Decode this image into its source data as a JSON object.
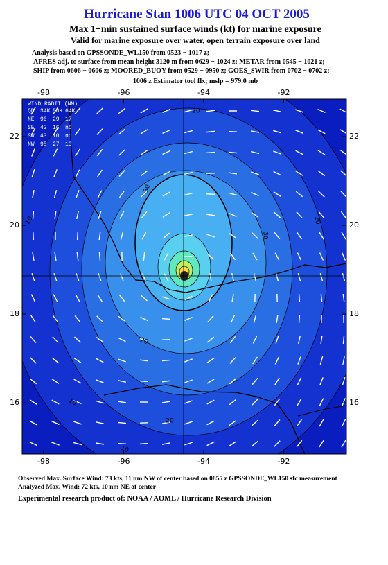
{
  "header": {
    "title": "Hurricane Stan 1006 UTC 04 OCT 2005",
    "subtitle": "Max 1−min sustained surface winds (kt) for marine exposure",
    "validity": "Valid for marine exposure over water, open terrain exposure over land",
    "analysis": [
      "Analysis based on  GPSSONDE_WL150 from 0523 − 1017 z;",
      "AFRES adj. to surface from mean height 3120 m from 0629 − 1024 z;  METAR from 0545 − 1021 z;",
      "SHIP from 0606 − 0606 z;  MOORED_BUOY from 0529 − 0950 z;  GOES_SWIR from 0702 − 0702 z;"
    ],
    "estimator": "1006 z Estimator tool flx; mslp = 979.0 mb"
  },
  "map": {
    "xticks": [
      -98,
      -96,
      -94,
      -92
    ],
    "yticks": [
      22,
      20,
      18,
      16
    ],
    "contour_labels": [
      20,
      30,
      10,
      20,
      30,
      20,
      20,
      10,
      10
    ],
    "wind_radii": {
      "title": "WIND RADII (NM)",
      "columns": [
        "QD",
        "34K",
        "50K",
        "64K"
      ],
      "rows": [
        [
          "NE",
          96,
          29,
          17
        ],
        [
          "SE",
          42,
          16,
          "no"
        ],
        [
          "SW",
          43,
          10,
          "no"
        ],
        [
          "NW",
          95,
          27,
          13
        ]
      ]
    }
  },
  "footer": {
    "observed": "Observed Max. Surface Wind: 73 kts, 11 nm NW of center based on 0855 z GPSSONDE_WL150 sfc measurement",
    "analyzed": "Analyzed Max. Wind: 72 kts, 10 nm NE of center",
    "credit": "Experimental research product of:  NOAA / AOML / Hurricane Research Division"
  }
}
